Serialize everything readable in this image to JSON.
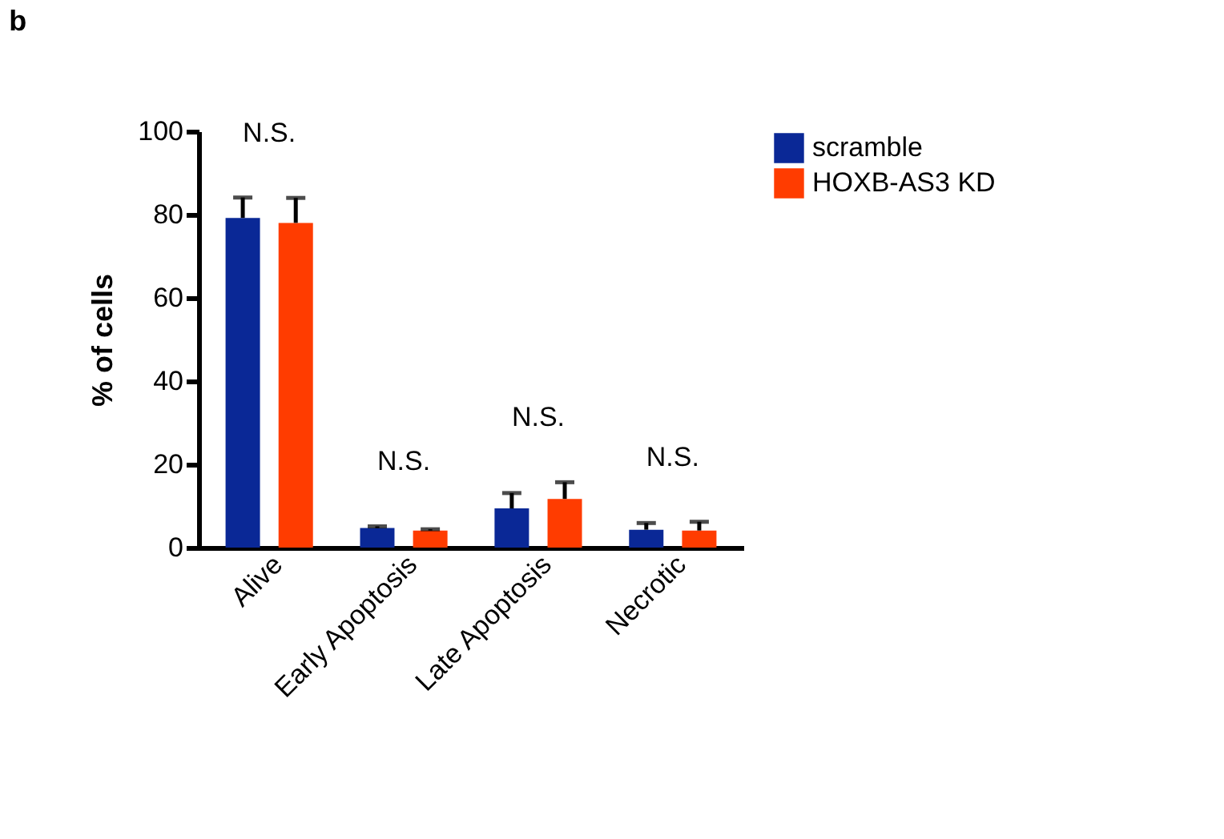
{
  "chart_data": {
    "type": "bar",
    "title": "b",
    "ylabel": "% of cells",
    "categories": [
      "Alive",
      "Early Apoptosis",
      "Late Apoptosis",
      "Necrotic"
    ],
    "series": [
      {
        "name": "scramble",
        "color": "#0a2896",
        "values": [
          79.2,
          4.7,
          9.4,
          4.3
        ],
        "errors": [
          [
            79.2,
            84.1
          ],
          [
            4.7,
            5.1
          ],
          [
            9.4,
            13.1
          ],
          [
            4.3,
            5.9
          ]
        ]
      },
      {
        "name": "HOXB-AS3 KD",
        "color": "#ff3c00",
        "values": [
          78,
          4.1,
          11.7,
          4.1
        ],
        "errors": [
          [
            78,
            84
          ],
          [
            4.1,
            4.4
          ],
          [
            11.7,
            15.7
          ],
          [
            4.1,
            6.2
          ]
        ]
      }
    ],
    "ylim": [
      0,
      100
    ],
    "yticks": [
      0,
      20,
      40,
      60,
      80,
      100
    ],
    "grid": false,
    "legend": "top right",
    "annotations": [
      "N.S.",
      "N.S.",
      "N.S.",
      "N.S."
    ]
  }
}
